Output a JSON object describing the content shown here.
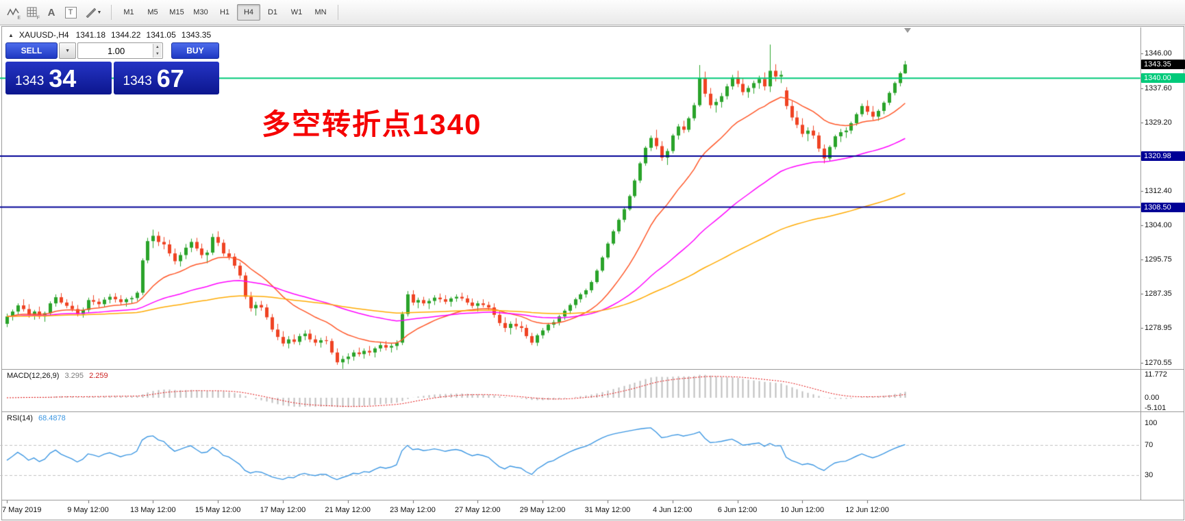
{
  "icons": {
    "caret_down": "▼",
    "caret_up": "▲",
    "symbol_marker": "▲"
  },
  "toolbar": {
    "icon_glyphs": {
      "e": "E",
      "f": "F",
      "a": "A",
      "t": "T"
    },
    "timeframes": [
      {
        "label": "M1"
      },
      {
        "label": "M5"
      },
      {
        "label": "M15"
      },
      {
        "label": "M30"
      },
      {
        "label": "H1"
      },
      {
        "label": "H4",
        "active": true
      },
      {
        "label": "D1"
      },
      {
        "label": "W1"
      },
      {
        "label": "MN"
      }
    ]
  },
  "chart": {
    "symbol": "XAUUSD-,H4",
    "ohlc_line": {
      "open": "1341.18",
      "high": "1344.22",
      "low": "1341.05",
      "close": "1343.35"
    },
    "trade_panel": {
      "sell_label": "SELL",
      "buy_label": "BUY",
      "volume": "1.00",
      "sell_price_main": "1343",
      "sell_price_pips": "34",
      "buy_price_main": "1343",
      "buy_price_pips": "67"
    },
    "annotation": {
      "text": "多空转折点1340",
      "color": "#f50000"
    },
    "current_price": {
      "price": 1343.35,
      "label": "1343.35",
      "badge_color": "#000000"
    },
    "hlines": [
      {
        "price": 1340.0,
        "label": "1340.00",
        "color": "#00ca7a"
      },
      {
        "price": 1320.98,
        "label": "1320.98",
        "color": "#000096"
      },
      {
        "price": 1308.5,
        "label": "1308.50",
        "color": "#000096"
      }
    ],
    "price_axis_ticks": [
      "1346.00",
      "1337.60",
      "1329.20",
      "1312.40",
      "1304.00",
      "1295.75",
      "1287.35",
      "1278.95",
      "1270.55"
    ],
    "macd": {
      "label": "MACD(12,26,9)",
      "main_value": "3.295",
      "signal_value": "2.259",
      "axis": [
        {
          "label": "11.772",
          "value": 11.772
        },
        {
          "label": "0.00",
          "value": 0
        },
        {
          "label": "-5.101",
          "value": -5.101
        }
      ]
    },
    "rsi": {
      "label": "RSI(14)",
      "value": "68.4878",
      "axis": [
        {
          "label": "100",
          "value": 100
        },
        {
          "label": "70",
          "value": 70
        },
        {
          "label": "30",
          "value": 30
        }
      ]
    }
  },
  "chart_data": {
    "type": "candlestick",
    "symbol": "XAUUSD-",
    "timeframe": "H4",
    "price_axis_range": [
      1269.3,
      1352.4
    ],
    "colors": {
      "bull": "#2aa32a",
      "bear": "#ef4323",
      "macd_hist": "#bdbdbd",
      "macd_signal": "#e00000",
      "rsi": "#3b96e2",
      "levels": "#c0c0c0"
    },
    "overlays": [
      {
        "name": "ma-fast",
        "period": 18,
        "color": "#ff5526"
      },
      {
        "name": "ma-mid",
        "period": 55,
        "color": "#ff00ff"
      },
      {
        "name": "ma-slow",
        "period": 120,
        "color": "#ffaa00"
      }
    ],
    "indicators": {
      "macd": {
        "fast": 12,
        "slow": 26,
        "signal": 9,
        "current_main": 3.295,
        "current_signal": 2.259
      },
      "rsi": {
        "period": 14,
        "current": 68.4878,
        "levels": [
          70,
          30
        ]
      }
    },
    "time_axis": [
      {
        "label": "7 May 2019",
        "index": 0
      },
      {
        "label": "9 May 12:00",
        "index": 15
      },
      {
        "label": "13 May 12:00",
        "index": 27
      },
      {
        "label": "15 May 12:00",
        "index": 39
      },
      {
        "label": "17 May 12:00",
        "index": 51
      },
      {
        "label": "21 May 12:00",
        "index": 63
      },
      {
        "label": "23 May 12:00",
        "index": 75
      },
      {
        "label": "27 May 12:00",
        "index": 87
      },
      {
        "label": "29 May 12:00",
        "index": 99
      },
      {
        "label": "31 May 12:00",
        "index": 111
      },
      {
        "label": "4 Jun 12:00",
        "index": 123
      },
      {
        "label": "6 Jun 12:00",
        "index": 135
      },
      {
        "label": "10 Jun 12:00",
        "index": 147
      },
      {
        "label": "12 Jun 12:00",
        "index": 159
      }
    ],
    "ohlc": [
      [
        1280.0,
        1282.5,
        1279.2,
        1281.8
      ],
      [
        1281.8,
        1283.5,
        1280.8,
        1283.0
      ],
      [
        1283.0,
        1285.0,
        1282.2,
        1284.5
      ],
      [
        1284.5,
        1286.0,
        1283.0,
        1283.6
      ],
      [
        1283.6,
        1284.8,
        1281.5,
        1282.2
      ],
      [
        1282.2,
        1283.4,
        1281.0,
        1283.0
      ],
      [
        1283.0,
        1284.2,
        1281.2,
        1281.8
      ],
      [
        1281.8,
        1283.0,
        1280.5,
        1282.6
      ],
      [
        1282.6,
        1285.5,
        1282.0,
        1285.0
      ],
      [
        1285.0,
        1287.2,
        1284.2,
        1286.5
      ],
      [
        1286.5,
        1287.5,
        1284.8,
        1285.2
      ],
      [
        1285.2,
        1286.0,
        1283.8,
        1284.4
      ],
      [
        1284.4,
        1285.5,
        1283.0,
        1283.6
      ],
      [
        1283.6,
        1284.6,
        1281.8,
        1282.4
      ],
      [
        1282.4,
        1284.0,
        1281.5,
        1283.4
      ],
      [
        1283.4,
        1286.4,
        1282.8,
        1285.8
      ],
      [
        1285.8,
        1287.0,
        1284.6,
        1285.4
      ],
      [
        1285.4,
        1286.2,
        1284.0,
        1284.8
      ],
      [
        1284.8,
        1286.5,
        1284.0,
        1285.9
      ],
      [
        1285.9,
        1287.3,
        1285.0,
        1286.6
      ],
      [
        1286.6,
        1287.5,
        1285.2,
        1286.0
      ],
      [
        1286.0,
        1287.0,
        1284.5,
        1285.3
      ],
      [
        1285.3,
        1286.4,
        1284.2,
        1286.0
      ],
      [
        1286.0,
        1286.8,
        1285.0,
        1286.3
      ],
      [
        1286.3,
        1288.0,
        1285.6,
        1287.6
      ],
      [
        1287.6,
        1296.0,
        1287.0,
        1295.5
      ],
      [
        1295.5,
        1301.0,
        1294.8,
        1300.2
      ],
      [
        1300.2,
        1303.0,
        1298.5,
        1301.5
      ],
      [
        1301.5,
        1302.5,
        1299.0,
        1300.0
      ],
      [
        1300.0,
        1301.2,
        1298.2,
        1299.4
      ],
      [
        1299.4,
        1300.5,
        1296.5,
        1297.2
      ],
      [
        1297.2,
        1298.4,
        1294.5,
        1295.3
      ],
      [
        1295.3,
        1297.5,
        1294.0,
        1296.8
      ],
      [
        1296.8,
        1299.5,
        1295.8,
        1298.6
      ],
      [
        1298.6,
        1300.8,
        1297.5,
        1300.0
      ],
      [
        1300.0,
        1301.0,
        1297.8,
        1298.4
      ],
      [
        1298.4,
        1299.6,
        1296.0,
        1296.8
      ],
      [
        1296.8,
        1298.0,
        1294.8,
        1297.4
      ],
      [
        1297.4,
        1302.0,
        1296.8,
        1301.2
      ],
      [
        1301.2,
        1302.6,
        1299.0,
        1299.8
      ],
      [
        1299.8,
        1300.6,
        1296.5,
        1297.2
      ],
      [
        1297.2,
        1298.2,
        1295.6,
        1296.4
      ],
      [
        1296.4,
        1297.2,
        1293.5,
        1294.2
      ],
      [
        1294.2,
        1295.0,
        1291.0,
        1291.8
      ],
      [
        1291.8,
        1292.6,
        1286.0,
        1286.6
      ],
      [
        1286.6,
        1287.8,
        1283.0,
        1283.8
      ],
      [
        1283.8,
        1285.4,
        1282.0,
        1284.6
      ],
      [
        1284.6,
        1285.6,
        1283.2,
        1284.0
      ],
      [
        1284.0,
        1284.8,
        1281.0,
        1281.6
      ],
      [
        1281.6,
        1282.4,
        1278.0,
        1278.6
      ],
      [
        1278.6,
        1280.0,
        1276.0,
        1276.8
      ],
      [
        1276.8,
        1278.2,
        1274.5,
        1275.2
      ],
      [
        1275.2,
        1277.0,
        1274.0,
        1276.2
      ],
      [
        1276.2,
        1277.4,
        1275.0,
        1275.6
      ],
      [
        1275.6,
        1277.6,
        1274.8,
        1277.0
      ],
      [
        1277.0,
        1278.4,
        1276.0,
        1277.6
      ],
      [
        1277.6,
        1278.6,
        1275.5,
        1276.2
      ],
      [
        1276.2,
        1277.2,
        1274.6,
        1275.4
      ],
      [
        1275.4,
        1276.6,
        1274.2,
        1276.0
      ],
      [
        1276.0,
        1277.0,
        1275.0,
        1275.8
      ],
      [
        1275.8,
        1276.4,
        1272.5,
        1273.0
      ],
      [
        1273.0,
        1274.0,
        1270.0,
        1270.6
      ],
      [
        1270.6,
        1272.2,
        1269.0,
        1271.4
      ],
      [
        1271.4,
        1272.8,
        1270.2,
        1272.0
      ],
      [
        1272.0,
        1273.6,
        1271.0,
        1273.0
      ],
      [
        1273.0,
        1274.2,
        1272.0,
        1272.6
      ],
      [
        1272.6,
        1274.0,
        1271.5,
        1273.4
      ],
      [
        1273.4,
        1274.6,
        1272.2,
        1273.0
      ],
      [
        1273.0,
        1274.4,
        1271.8,
        1274.0
      ],
      [
        1274.0,
        1275.6,
        1273.2,
        1274.8
      ],
      [
        1274.8,
        1275.8,
        1273.5,
        1274.2
      ],
      [
        1274.2,
        1275.2,
        1273.0,
        1274.6
      ],
      [
        1274.6,
        1276.0,
        1273.6,
        1275.4
      ],
      [
        1275.4,
        1283.0,
        1274.8,
        1282.4
      ],
      [
        1282.4,
        1288.0,
        1281.8,
        1287.2
      ],
      [
        1287.2,
        1288.2,
        1284.5,
        1285.2
      ],
      [
        1285.2,
        1286.4,
        1283.8,
        1285.8
      ],
      [
        1285.8,
        1286.6,
        1284.4,
        1285.0
      ],
      [
        1285.0,
        1286.2,
        1283.6,
        1285.6
      ],
      [
        1285.6,
        1287.0,
        1284.6,
        1286.4
      ],
      [
        1286.4,
        1287.4,
        1285.2,
        1286.0
      ],
      [
        1286.0,
        1287.0,
        1284.8,
        1285.4
      ],
      [
        1285.4,
        1286.6,
        1284.2,
        1286.2
      ],
      [
        1286.2,
        1287.2,
        1285.4,
        1286.6
      ],
      [
        1286.6,
        1287.6,
        1285.6,
        1286.2
      ],
      [
        1286.2,
        1287.0,
        1284.6,
        1285.2
      ],
      [
        1285.2,
        1286.2,
        1283.8,
        1284.4
      ],
      [
        1284.4,
        1285.6,
        1283.0,
        1285.0
      ],
      [
        1285.0,
        1286.0,
        1284.0,
        1284.6
      ],
      [
        1284.6,
        1285.4,
        1283.4,
        1284.0
      ],
      [
        1284.0,
        1285.0,
        1281.5,
        1282.2
      ],
      [
        1282.2,
        1283.2,
        1279.5,
        1280.2
      ],
      [
        1280.2,
        1281.6,
        1278.0,
        1279.0
      ],
      [
        1279.0,
        1280.6,
        1277.4,
        1280.0
      ],
      [
        1280.0,
        1281.4,
        1278.6,
        1279.4
      ],
      [
        1279.4,
        1280.6,
        1278.0,
        1279.0
      ],
      [
        1279.0,
        1279.8,
        1276.4,
        1277.0
      ],
      [
        1277.0,
        1277.8,
        1274.8,
        1275.4
      ],
      [
        1275.4,
        1277.6,
        1274.6,
        1277.2
      ],
      [
        1277.2,
        1279.0,
        1276.4,
        1278.4
      ],
      [
        1278.4,
        1280.2,
        1277.8,
        1279.8
      ],
      [
        1279.8,
        1281.0,
        1279.0,
        1280.4
      ],
      [
        1280.4,
        1282.2,
        1279.6,
        1281.8
      ],
      [
        1281.8,
        1283.6,
        1281.0,
        1283.2
      ],
      [
        1283.2,
        1285.0,
        1282.4,
        1284.6
      ],
      [
        1284.6,
        1286.4,
        1283.8,
        1286.0
      ],
      [
        1286.0,
        1287.6,
        1285.2,
        1287.2
      ],
      [
        1287.2,
        1288.6,
        1286.4,
        1288.2
      ],
      [
        1288.2,
        1290.6,
        1287.6,
        1290.2
      ],
      [
        1290.2,
        1293.4,
        1289.8,
        1293.0
      ],
      [
        1293.0,
        1296.6,
        1292.6,
        1296.2
      ],
      [
        1296.2,
        1300.0,
        1295.8,
        1299.6
      ],
      [
        1299.6,
        1303.0,
        1299.2,
        1302.6
      ],
      [
        1302.6,
        1305.8,
        1302.0,
        1305.4
      ],
      [
        1305.4,
        1308.4,
        1304.8,
        1308.0
      ],
      [
        1308.0,
        1311.6,
        1307.6,
        1311.2
      ],
      [
        1311.2,
        1315.4,
        1310.8,
        1315.0
      ],
      [
        1315.0,
        1319.6,
        1314.4,
        1319.2
      ],
      [
        1319.2,
        1323.4,
        1318.6,
        1323.0
      ],
      [
        1323.0,
        1326.0,
        1322.2,
        1325.4
      ],
      [
        1325.4,
        1327.4,
        1322.6,
        1323.4
      ],
      [
        1323.4,
        1324.6,
        1319.8,
        1320.6
      ],
      [
        1320.6,
        1322.8,
        1318.8,
        1322.2
      ],
      [
        1322.2,
        1326.4,
        1321.6,
        1326.0
      ],
      [
        1326.0,
        1328.8,
        1325.0,
        1328.2
      ],
      [
        1328.2,
        1329.6,
        1326.6,
        1327.4
      ],
      [
        1327.4,
        1330.6,
        1326.8,
        1330.2
      ],
      [
        1330.2,
        1334.0,
        1329.6,
        1333.4
      ],
      [
        1333.4,
        1343.2,
        1333.0,
        1340.0
      ],
      [
        1340.0,
        1341.6,
        1335.4,
        1336.2
      ],
      [
        1336.2,
        1337.6,
        1332.6,
        1333.4
      ],
      [
        1333.4,
        1335.0,
        1331.6,
        1334.2
      ],
      [
        1334.2,
        1336.4,
        1332.8,
        1335.6
      ],
      [
        1335.6,
        1338.6,
        1334.8,
        1338.0
      ],
      [
        1338.0,
        1340.8,
        1337.2,
        1340.2
      ],
      [
        1340.2,
        1341.8,
        1337.8,
        1338.6
      ],
      [
        1338.6,
        1340.0,
        1335.8,
        1336.6
      ],
      [
        1336.6,
        1338.2,
        1335.2,
        1337.6
      ],
      [
        1337.6,
        1339.4,
        1336.2,
        1338.8
      ],
      [
        1338.8,
        1340.6,
        1337.4,
        1339.8
      ],
      [
        1339.8,
        1341.4,
        1337.0,
        1338.0
      ],
      [
        1338.0,
        1348.2,
        1336.6,
        1341.8
      ],
      [
        1341.8,
        1343.4,
        1339.2,
        1340.4
      ],
      [
        1340.4,
        1341.8,
        1338.8,
        1340.8
      ],
      [
        1337.0,
        1337.8,
        1332.4,
        1333.2
      ],
      [
        1333.2,
        1334.4,
        1329.6,
        1330.4
      ],
      [
        1330.4,
        1332.0,
        1327.8,
        1328.6
      ],
      [
        1328.6,
        1330.2,
        1325.6,
        1326.4
      ],
      [
        1326.4,
        1328.0,
        1324.6,
        1327.2
      ],
      [
        1327.2,
        1328.4,
        1325.2,
        1326.0
      ],
      [
        1326.0,
        1326.8,
        1322.0,
        1322.8
      ],
      [
        1322.8,
        1323.8,
        1319.2,
        1320.4
      ],
      [
        1320.4,
        1323.6,
        1319.8,
        1323.2
      ],
      [
        1323.2,
        1326.2,
        1322.6,
        1325.8
      ],
      [
        1325.8,
        1327.6,
        1324.4,
        1326.8
      ],
      [
        1326.8,
        1328.0,
        1325.4,
        1327.2
      ],
      [
        1327.2,
        1329.4,
        1326.4,
        1329.0
      ],
      [
        1329.0,
        1331.6,
        1328.4,
        1331.2
      ],
      [
        1331.2,
        1333.8,
        1330.6,
        1333.2
      ],
      [
        1333.2,
        1334.6,
        1331.0,
        1331.8
      ],
      [
        1331.8,
        1333.2,
        1329.8,
        1330.6
      ],
      [
        1330.6,
        1332.4,
        1329.6,
        1332.0
      ],
      [
        1332.0,
        1334.4,
        1331.2,
        1334.0
      ],
      [
        1334.0,
        1336.8,
        1333.4,
        1336.4
      ],
      [
        1336.4,
        1339.2,
        1335.8,
        1338.8
      ],
      [
        1338.8,
        1341.6,
        1338.0,
        1341.2
      ],
      [
        1341.18,
        1344.22,
        1341.05,
        1343.35
      ]
    ]
  }
}
